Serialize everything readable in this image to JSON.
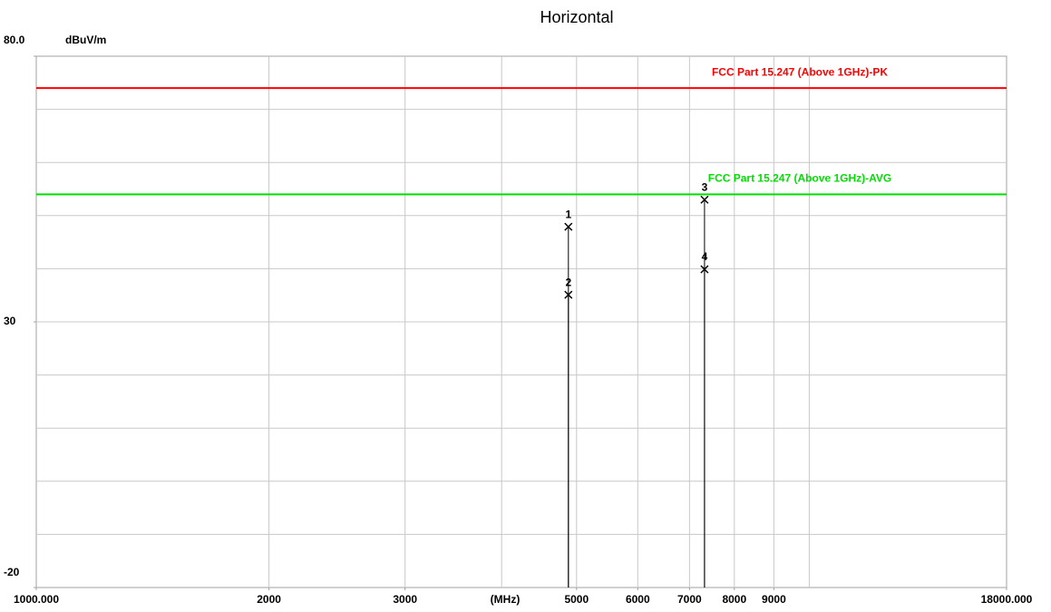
{
  "chart_data": {
    "type": "line",
    "title": "Horizontal",
    "ylabel": "dBuV/m",
    "xlabel": "(MHz)",
    "xscale": "log",
    "xlim": [
      1000,
      18000
    ],
    "ylim": [
      -20,
      80
    ],
    "yticks": [
      {
        "value": 80,
        "label": "80.0"
      },
      30,
      -20
    ],
    "xticks": [
      {
        "value": 1000,
        "label": "1000.000"
      },
      2000,
      3000,
      5000,
      6000,
      7000,
      8000,
      9000,
      {
        "value": 18000,
        "label": "18000.000"
      }
    ],
    "ygrid": [
      -10,
      0,
      10,
      20,
      30,
      40,
      50,
      60,
      70
    ],
    "xgrid": [
      2000,
      3000,
      4000,
      5000,
      6000,
      7000,
      8000,
      9000,
      10000
    ],
    "limits": [
      {
        "name": "FCC Part 15.247 (Above 1GHz)-PK",
        "color": "#ff0000",
        "value": 74
      },
      {
        "name": "FCC Part 15.247 (Above 1GHz)-AVG",
        "color": "#00e000",
        "value": 54
      }
    ],
    "markers": [
      {
        "label": "1",
        "x": 4880,
        "value": 47.9
      },
      {
        "label": "2",
        "x": 4880,
        "value": 35.1
      },
      {
        "label": "3",
        "x": 7320,
        "value": 53.0
      },
      {
        "label": "4",
        "x": 7320,
        "value": 39.9
      }
    ]
  }
}
